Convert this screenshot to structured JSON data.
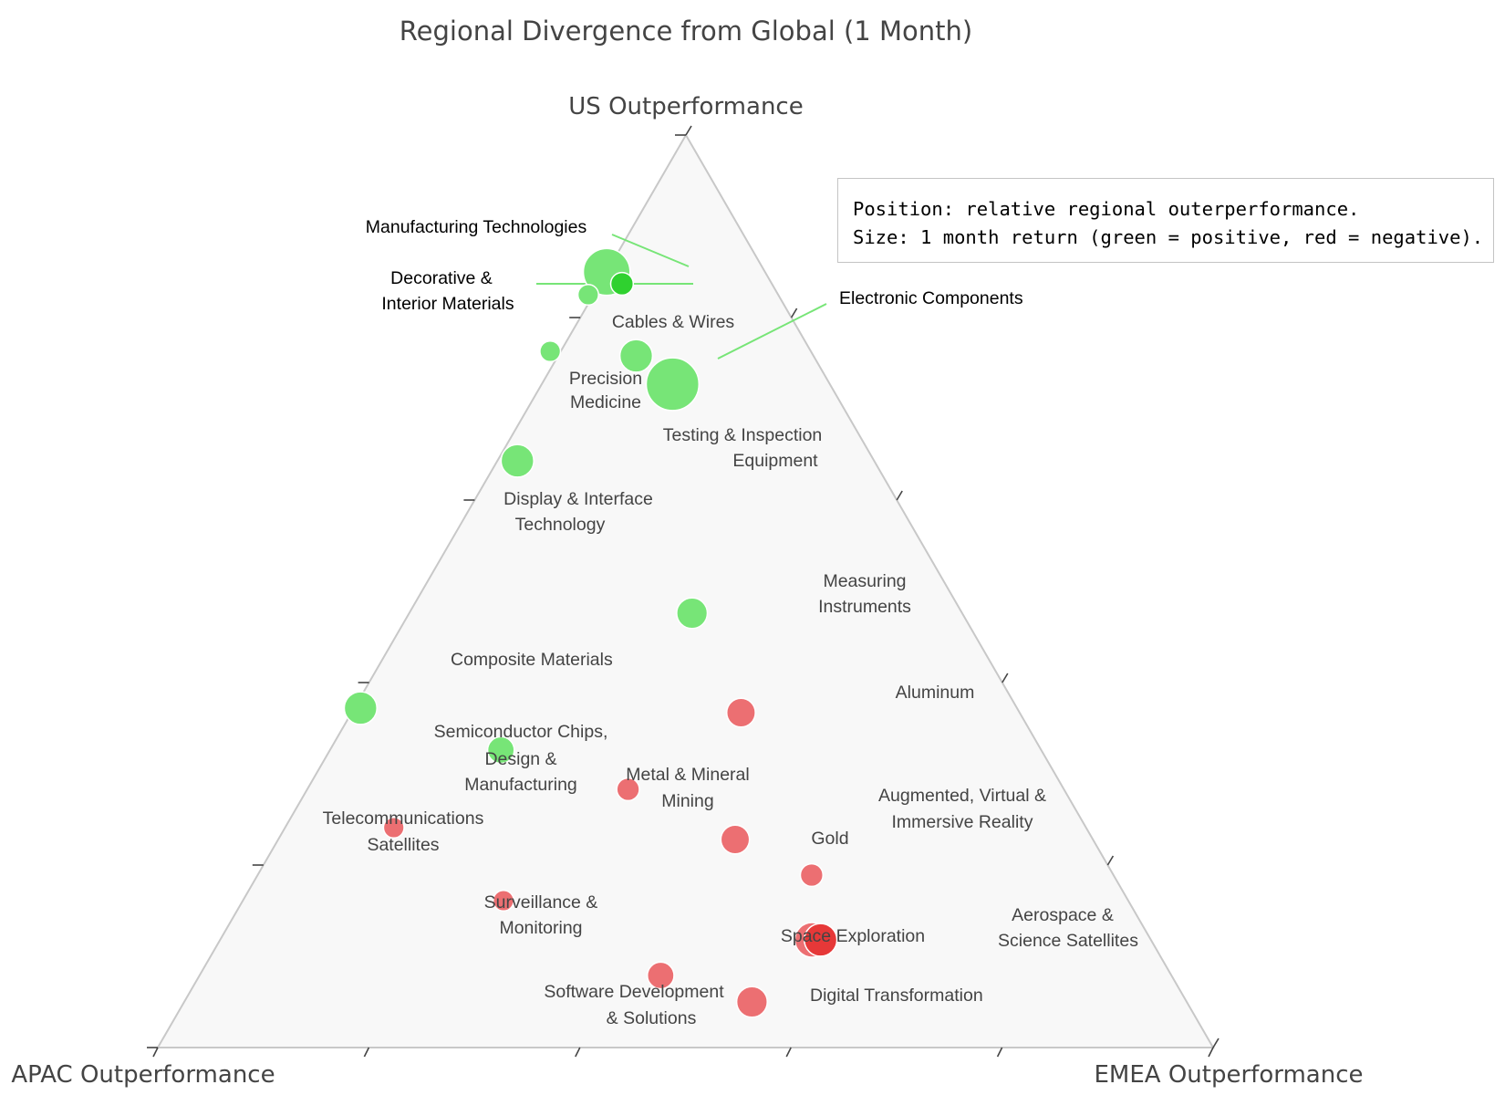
{
  "chart_data": {
    "type": "scatter",
    "subtype": "ternary",
    "title": "Regional Divergence from Global (1 Month)",
    "axes": {
      "top": "US Outperformance",
      "left": "APAC Outperformance",
      "right": "EMEA Outperformance"
    },
    "grid": false,
    "legend_placement": "top-right",
    "colors": {
      "positive": "#77e577",
      "negative": "#ec6f72",
      "positive_highlight": "#2fd12f",
      "negative_highlight": "#e63838",
      "triangle_fill": "#f8f8f8",
      "triangle_edge": "#c8c8c8"
    },
    "points": [
      {
        "name": "Manufacturing Technologies",
        "us": 0.85,
        "apac": 0.15,
        "emea": 0.0,
        "sign": "positive",
        "size": 0.8
      },
      {
        "name": "Decorative & Interior Materials",
        "us": 0.837,
        "apac": 0.142,
        "emea": 0.021,
        "sign": "positive",
        "size": 0.2,
        "highlight": true
      },
      {
        "name": "Cables & Wires",
        "us": 0.825,
        "apac": 0.18,
        "emea": -0.005,
        "sign": "positive",
        "size": 0.15
      },
      {
        "name": "Precision Medicine",
        "us": 0.763,
        "apac": 0.247,
        "emea": -0.01,
        "sign": "positive",
        "size": 0.15
      },
      {
        "name": "Electronic Components",
        "us": 0.758,
        "apac": 0.168,
        "emea": 0.074,
        "sign": "positive",
        "size": 0.45
      },
      {
        "name": "Testing & Inspection Equipment",
        "us": 0.727,
        "apac": 0.149,
        "emea": 0.124,
        "sign": "positive",
        "size": 0.95
      },
      {
        "name": "Display & Interface Technology",
        "us": 0.643,
        "apac": 0.338,
        "emea": 0.019,
        "sign": "positive",
        "size": 0.45
      },
      {
        "name": "Measuring Instruments",
        "us": 0.476,
        "apac": 0.256,
        "emea": 0.268,
        "sign": "positive",
        "size": 0.4
      },
      {
        "name": "Composite Materials",
        "us": 0.372,
        "apac": 0.622,
        "emea": 0.006,
        "sign": "positive",
        "size": 0.45
      },
      {
        "name": "Semiconductor Chips, Design & Manufacturing",
        "us": 0.326,
        "apac": 0.512,
        "emea": 0.162,
        "sign": "positive",
        "size": 0.3
      },
      {
        "name": "Aluminum",
        "us": 0.367,
        "apac": 0.264,
        "emea": 0.369,
        "sign": "negative",
        "size": 0.35
      },
      {
        "name": "Metal & Mineral Mining",
        "us": 0.283,
        "apac": 0.413,
        "emea": 0.304,
        "sign": "negative",
        "size": 0.2
      },
      {
        "name": "Telecommunications Satellites",
        "us": 0.241,
        "apac": 0.656,
        "emea": 0.103,
        "sign": "negative",
        "size": 0.15
      },
      {
        "name": "Gold",
        "us": 0.228,
        "apac": 0.339,
        "emea": 0.433,
        "sign": "negative",
        "size": 0.35
      },
      {
        "name": "Augmented, Virtual & Immersive Reality",
        "us": 0.189,
        "apac": 0.286,
        "emea": 0.525,
        "sign": "negative",
        "size": 0.2
      },
      {
        "name": "Surveillance & Monitoring",
        "us": 0.161,
        "apac": 0.592,
        "emea": 0.247,
        "sign": "negative",
        "size": 0.15
      },
      {
        "name": "Space Exploration",
        "us": 0.118,
        "apac": 0.321,
        "emea": 0.561,
        "sign": "negative",
        "size": 0.5
      },
      {
        "name": "Aerospace & Science Satellites",
        "us": 0.118,
        "apac": 0.313,
        "emea": 0.569,
        "sign": "negative",
        "size": 0.45,
        "highlight": true
      },
      {
        "name": "Software Development & Solutions",
        "us": 0.079,
        "apac": 0.484,
        "emea": 0.437,
        "sign": "negative",
        "size": 0.3
      },
      {
        "name": "Digital Transformation",
        "us": 0.05,
        "apac": 0.412,
        "emea": 0.538,
        "sign": "negative",
        "size": 0.4
      }
    ]
  },
  "legend": {
    "line1": "Position: relative regional outerperformance.",
    "line2": "Size: 1 month return (green = positive, red = negative)."
  },
  "labels": {
    "cables": "Cables & Wires",
    "precision_1": "Precision",
    "precision_2": "Medicine",
    "testing_1": "Testing & Inspection",
    "testing_2": "Equipment",
    "display_1": "Display & Interface",
    "display_2": "Technology",
    "measuring_1": "Measuring",
    "measuring_2": "Instruments",
    "composite": "Composite Materials",
    "semi_1": "Semiconductor Chips,",
    "semi_2": "Design &",
    "semi_3": "Manufacturing",
    "aluminum": "Aluminum",
    "metal_1": "Metal & Mineral",
    "metal_2": "Mining",
    "telecom_1": "Telecommunications",
    "telecom_2": "Satellites",
    "gold": "Gold",
    "ar_1": "Augmented, Virtual &",
    "ar_2": "Immersive Reality",
    "surv_1": "Surveillance &",
    "surv_2": "Monitoring",
    "space": "Space Exploration",
    "aero_1": "Aerospace &",
    "aero_2": "Science Satellites",
    "software_1": "Software Development",
    "software_2": "& Solutions",
    "digital": "Digital Transformation",
    "manufacturing": "Manufacturing Technologies",
    "decorative_1": "Decorative &",
    "decorative_2": "Interior Materials",
    "electronic": "Electronic Components"
  }
}
